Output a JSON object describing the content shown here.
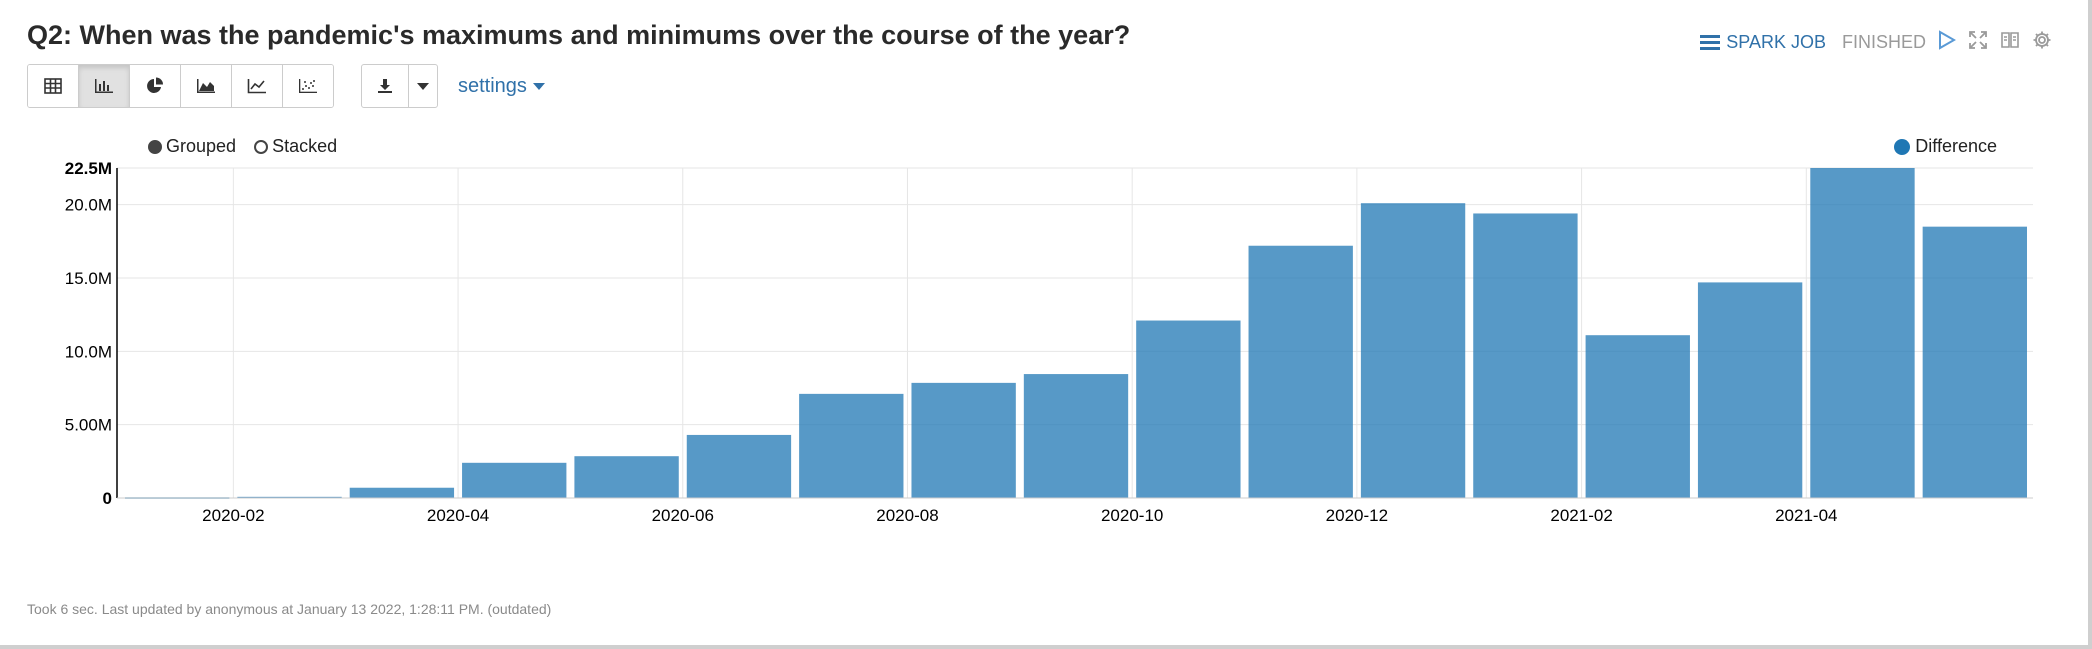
{
  "paragraph": {
    "title": "Q2: When was the pandemic's maximums and minimums over the course of the year?",
    "job_label": "SPARK JOB",
    "status": "FINISHED"
  },
  "toolbar": {
    "chart_buttons": [
      {
        "name": "table-view-button",
        "icon": "table-icon",
        "active": false
      },
      {
        "name": "bar-chart-button",
        "icon": "bar-chart-icon",
        "active": true
      },
      {
        "name": "pie-chart-button",
        "icon": "pie-chart-icon",
        "active": false
      },
      {
        "name": "area-chart-button",
        "icon": "area-chart-icon",
        "active": false
      },
      {
        "name": "line-chart-button",
        "icon": "line-chart-icon",
        "active": false
      },
      {
        "name": "scatter-chart-button",
        "icon": "scatter-chart-icon",
        "active": false
      }
    ],
    "settings_label": "settings"
  },
  "chart_controls": {
    "grouped_label": "Grouped",
    "stacked_label": "Stacked",
    "selected": "Grouped"
  },
  "chart_data": {
    "type": "bar",
    "categories": [
      "2020-01",
      "2020-02",
      "2020-03",
      "2020-04",
      "2020-05",
      "2020-06",
      "2020-07",
      "2020-08",
      "2020-09",
      "2020-10",
      "2020-11",
      "2020-12",
      "2021-01",
      "2021-02",
      "2021-03",
      "2021-04",
      "2021-05"
    ],
    "x_tick_labels": [
      "2020-02",
      "2020-04",
      "2020-06",
      "2020-08",
      "2020-10",
      "2020-12",
      "2021-02",
      "2021-04"
    ],
    "series": [
      {
        "name": "Difference",
        "color": "#1f77b4",
        "values": [
          0.05,
          0.08,
          0.7,
          2.4,
          2.85,
          4.3,
          7.1,
          7.85,
          8.45,
          12.1,
          17.2,
          20.1,
          19.4,
          11.1,
          14.7,
          22.5,
          18.5
        ]
      }
    ],
    "value_unit": "M",
    "ylim": [
      0,
      22.5
    ],
    "y_ticks": [
      "0",
      "5.00M",
      "10.0M",
      "15.0M",
      "20.0M",
      "22.5M"
    ],
    "grid": true,
    "legend_position": "top-right"
  },
  "footer": {
    "text": "Took 6 sec. Last updated by anonymous at January 13 2022, 1:28:11 PM. (outdated)"
  }
}
